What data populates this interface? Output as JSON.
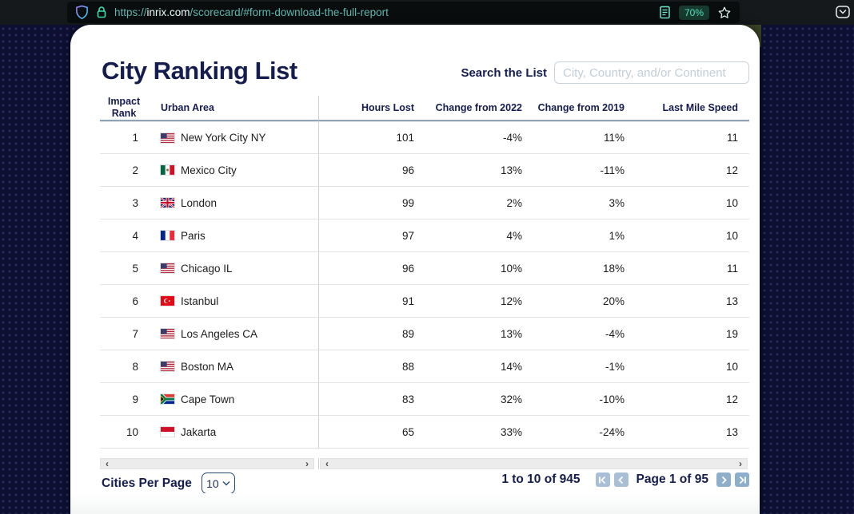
{
  "browser": {
    "url_protocol": "https://",
    "url_domain": "inrix.com",
    "url_path": "/scorecard/#form-download-the-full-report",
    "zoom_level": "70%"
  },
  "page": {
    "title": "City Ranking List",
    "search_label": "Search the List",
    "search_placeholder": "City, Country, and/or Continent"
  },
  "table": {
    "columns": [
      {
        "label": "Impact Rank"
      },
      {
        "label": "Urban Area"
      },
      {
        "label": "Hours Lost"
      },
      {
        "label": "Change from 2022"
      },
      {
        "label": "Change from 2019"
      },
      {
        "label": "Last Mile Speed"
      }
    ],
    "rows": [
      {
        "rank": "1",
        "flag": "us",
        "city": "New York City NY",
        "hours_lost": "101",
        "change_2022": "-4%",
        "change_2019": "11%",
        "last_mile_speed": "11"
      },
      {
        "rank": "2",
        "flag": "mx",
        "city": "Mexico City",
        "hours_lost": "96",
        "change_2022": "13%",
        "change_2019": "-11%",
        "last_mile_speed": "12"
      },
      {
        "rank": "3",
        "flag": "gb",
        "city": "London",
        "hours_lost": "99",
        "change_2022": "2%",
        "change_2019": "3%",
        "last_mile_speed": "10"
      },
      {
        "rank": "4",
        "flag": "fr",
        "city": "Paris",
        "hours_lost": "97",
        "change_2022": "4%",
        "change_2019": "1%",
        "last_mile_speed": "10"
      },
      {
        "rank": "5",
        "flag": "us",
        "city": "Chicago IL",
        "hours_lost": "96",
        "change_2022": "10%",
        "change_2019": "18%",
        "last_mile_speed": "11"
      },
      {
        "rank": "6",
        "flag": "tr",
        "city": "Istanbul",
        "hours_lost": "91",
        "change_2022": "12%",
        "change_2019": "20%",
        "last_mile_speed": "13"
      },
      {
        "rank": "7",
        "flag": "us",
        "city": "Los Angeles CA",
        "hours_lost": "89",
        "change_2022": "13%",
        "change_2019": "-4%",
        "last_mile_speed": "19"
      },
      {
        "rank": "8",
        "flag": "us",
        "city": "Boston MA",
        "hours_lost": "88",
        "change_2022": "14%",
        "change_2019": "-1%",
        "last_mile_speed": "10"
      },
      {
        "rank": "9",
        "flag": "za",
        "city": "Cape Town",
        "hours_lost": "83",
        "change_2022": "32%",
        "change_2019": "-10%",
        "last_mile_speed": "12"
      },
      {
        "rank": "10",
        "flag": "id",
        "city": "Jakarta",
        "hours_lost": "65",
        "change_2022": "33%",
        "change_2019": "-24%",
        "last_mile_speed": "13"
      }
    ]
  },
  "icons": {
    "scroll_left": "‹",
    "scroll_right": "›"
  },
  "footer": {
    "cities_per_page_label": "Cities Per Page",
    "cities_per_page_value": "10",
    "range_text": "1 to 10 of 945",
    "page_text": "Page 1 of 95"
  },
  "colors": {
    "accent_navy": "#151c4e",
    "toolbar_teal": "#3fe1b0",
    "url_teal": "#5fb8b0",
    "pagination_blue": "#8eafcb",
    "background_navy": "#0d1033"
  }
}
